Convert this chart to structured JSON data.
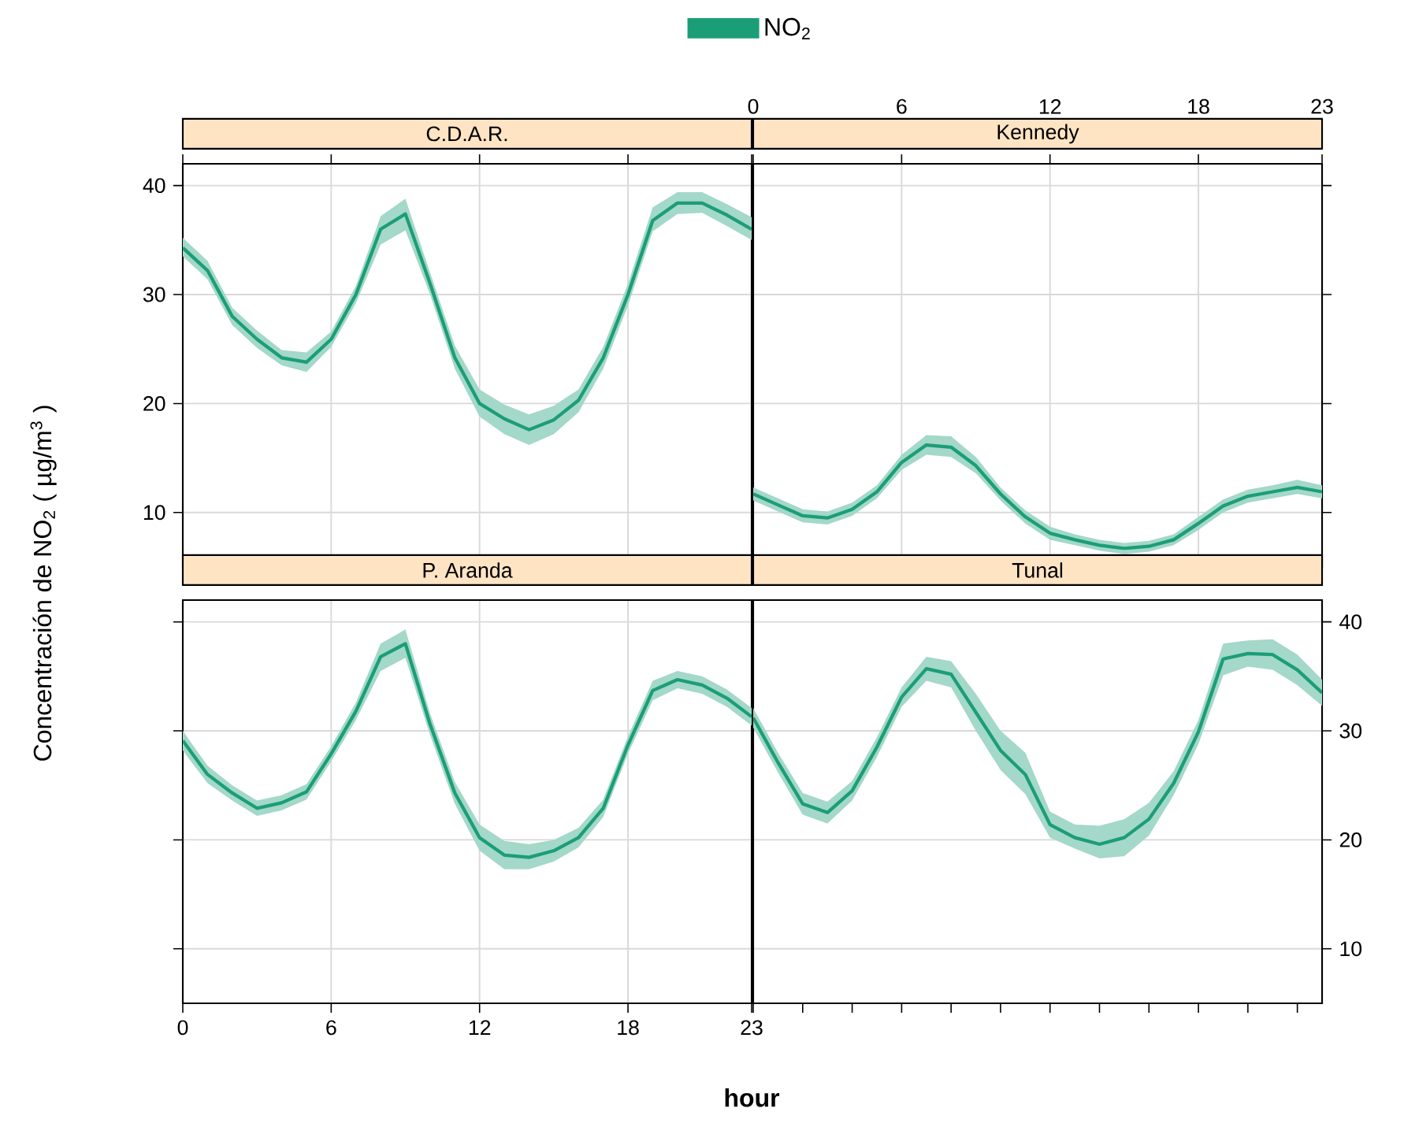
{
  "chart_data": [
    {
      "type": "line",
      "title": "C.D.A.R.",
      "ylabel": "Concentración de NO$_{2}$ ( µg/m$^{3}$ )",
      "legend": "top",
      "grid": true,
      "tick_labels": "y",
      "x": [
        0,
        1,
        2,
        3,
        4,
        5,
        6,
        7,
        8,
        9,
        10,
        11,
        12,
        13,
        14,
        15,
        16,
        17,
        18,
        19,
        20,
        21,
        22,
        23
      ],
      "xlim": [
        0,
        23
      ],
      "xticks": [
        0,
        6,
        12,
        18,
        23
      ],
      "ylim": [
        5,
        42
      ],
      "yticks": [
        10,
        20,
        30,
        40
      ],
      "series": [
        {
          "name": "NO$_{2}$",
          "color": "#1b9e77",
          "values": [
            34.3,
            32.2,
            28.0,
            25.9,
            24.2,
            23.8,
            25.9,
            30.0,
            36.0,
            37.4,
            31.0,
            24.2,
            20.0,
            18.6,
            17.6,
            18.5,
            20.3,
            24.2,
            30.0,
            36.8,
            38.4,
            38.4,
            37.3,
            36.0
          ],
          "lower": [
            33.5,
            31.4,
            27.2,
            25.1,
            23.5,
            22.9,
            25.2,
            29.2,
            34.6,
            35.9,
            30.0,
            23.2,
            18.8,
            17.2,
            16.2,
            17.2,
            19.2,
            23.2,
            29.0,
            35.8,
            37.4,
            37.5,
            36.3,
            35.0
          ],
          "upper": [
            35.2,
            33.1,
            28.8,
            26.7,
            24.9,
            24.7,
            26.6,
            30.8,
            37.2,
            38.8,
            32.0,
            25.3,
            21.3,
            19.9,
            19.0,
            19.8,
            21.3,
            25.2,
            31.0,
            38.0,
            39.4,
            39.4,
            38.3,
            37.1
          ]
        }
      ]
    },
    {
      "type": "line",
      "title": "Kennedy",
      "grid": true,
      "tick_labels": "x",
      "x": [
        0,
        1,
        2,
        3,
        4,
        5,
        6,
        7,
        8,
        9,
        10,
        11,
        12,
        13,
        14,
        15,
        16,
        17,
        18,
        19,
        20,
        21,
        22,
        23
      ],
      "xlim": [
        0,
        23
      ],
      "xticks": [
        0,
        6,
        12,
        18,
        23
      ],
      "ylim": [
        5,
        42
      ],
      "yticks": [
        10,
        20,
        30,
        40
      ],
      "series": [
        {
          "color": "#1b9e77",
          "values": [
            11.7,
            10.7,
            9.7,
            9.5,
            10.3,
            11.9,
            14.6,
            16.2,
            16.0,
            14.3,
            11.7,
            9.6,
            8.1,
            7.5,
            7.0,
            6.7,
            6.9,
            7.5,
            9.0,
            10.6,
            11.5,
            11.9,
            12.3,
            11.9
          ],
          "lower": [
            11.1,
            10.1,
            9.1,
            8.9,
            9.7,
            11.3,
            13.9,
            15.3,
            15.1,
            13.6,
            11.1,
            9.0,
            7.5,
            7.0,
            6.5,
            6.2,
            6.4,
            7.0,
            8.4,
            10.0,
            10.9,
            11.3,
            11.7,
            11.3
          ],
          "upper": [
            12.3,
            11.3,
            10.3,
            10.1,
            10.9,
            12.5,
            15.3,
            17.1,
            17.0,
            15.1,
            12.3,
            10.2,
            8.7,
            8.0,
            7.5,
            7.2,
            7.4,
            8.0,
            9.6,
            11.2,
            12.1,
            12.5,
            13.0,
            12.5
          ]
        }
      ]
    },
    {
      "type": "line",
      "title": "P. Aranda",
      "xlabel": "hour",
      "grid": true,
      "tick_labels": "x",
      "x": [
        0,
        1,
        2,
        3,
        4,
        5,
        6,
        7,
        8,
        9,
        10,
        11,
        12,
        13,
        14,
        15,
        16,
        17,
        18,
        19,
        20,
        21,
        22,
        23
      ],
      "xlim": [
        0,
        23
      ],
      "xticks": [
        0,
        6,
        12,
        18,
        23
      ],
      "ylim": [
        5,
        42
      ],
      "yticks": [
        10,
        20,
        30,
        40
      ],
      "series": [
        {
          "color": "#1b9e77",
          "values": [
            29.1,
            26.0,
            24.3,
            22.9,
            23.4,
            24.4,
            27.9,
            31.8,
            36.8,
            38.0,
            30.6,
            24.3,
            20.2,
            18.6,
            18.4,
            19.0,
            20.2,
            22.9,
            28.7,
            33.7,
            34.7,
            34.2,
            33.0,
            31.3
          ],
          "lower": [
            28.2,
            25.2,
            23.6,
            22.2,
            22.7,
            23.7,
            27.2,
            31.0,
            35.5,
            36.7,
            29.6,
            23.3,
            19.0,
            17.3,
            17.3,
            18.0,
            19.3,
            22.1,
            27.9,
            32.8,
            33.9,
            33.4,
            32.2,
            30.5
          ],
          "upper": [
            30.0,
            26.8,
            25.0,
            23.6,
            24.1,
            25.1,
            28.6,
            32.6,
            38.0,
            39.3,
            31.6,
            25.3,
            21.4,
            19.9,
            19.6,
            20.0,
            21.1,
            23.7,
            29.5,
            34.6,
            35.5,
            35.0,
            33.8,
            32.1
          ]
        }
      ]
    },
    {
      "type": "line",
      "title": "Tunal",
      "grid": "y",
      "tick_labels": "y",
      "categories": [
        null,
        null,
        null,
        null,
        null,
        null,
        null,
        null,
        null,
        null,
        null,
        null,
        null,
        null,
        null,
        null,
        null,
        null,
        null,
        null,
        null,
        null,
        null,
        null
      ],
      "ylim": [
        5,
        42
      ],
      "yticks": [
        10,
        20,
        30,
        40
      ],
      "series": [
        {
          "color": "#1b9e77",
          "values": [
            31.2,
            27.1,
            23.3,
            22.5,
            24.5,
            28.5,
            33.1,
            35.7,
            35.2,
            31.7,
            28.2,
            26.0,
            21.4,
            20.2,
            19.6,
            20.2,
            21.9,
            25.2,
            29.9,
            36.6,
            37.1,
            37.0,
            35.6,
            33.5
          ],
          "lower": [
            30.3,
            26.2,
            22.3,
            21.5,
            23.6,
            27.6,
            32.2,
            34.6,
            34.0,
            30.0,
            26.4,
            24.2,
            20.2,
            19.2,
            18.3,
            18.5,
            20.4,
            24.1,
            28.8,
            35.1,
            35.9,
            35.6,
            34.2,
            32.3
          ],
          "upper": [
            32.1,
            28.0,
            24.3,
            23.5,
            25.4,
            29.4,
            34.0,
            36.8,
            36.4,
            33.4,
            30.0,
            28.0,
            22.6,
            21.4,
            21.3,
            21.9,
            23.4,
            26.3,
            31.0,
            38.0,
            38.3,
            38.4,
            37.0,
            34.7
          ]
        }
      ]
    }
  ]
}
